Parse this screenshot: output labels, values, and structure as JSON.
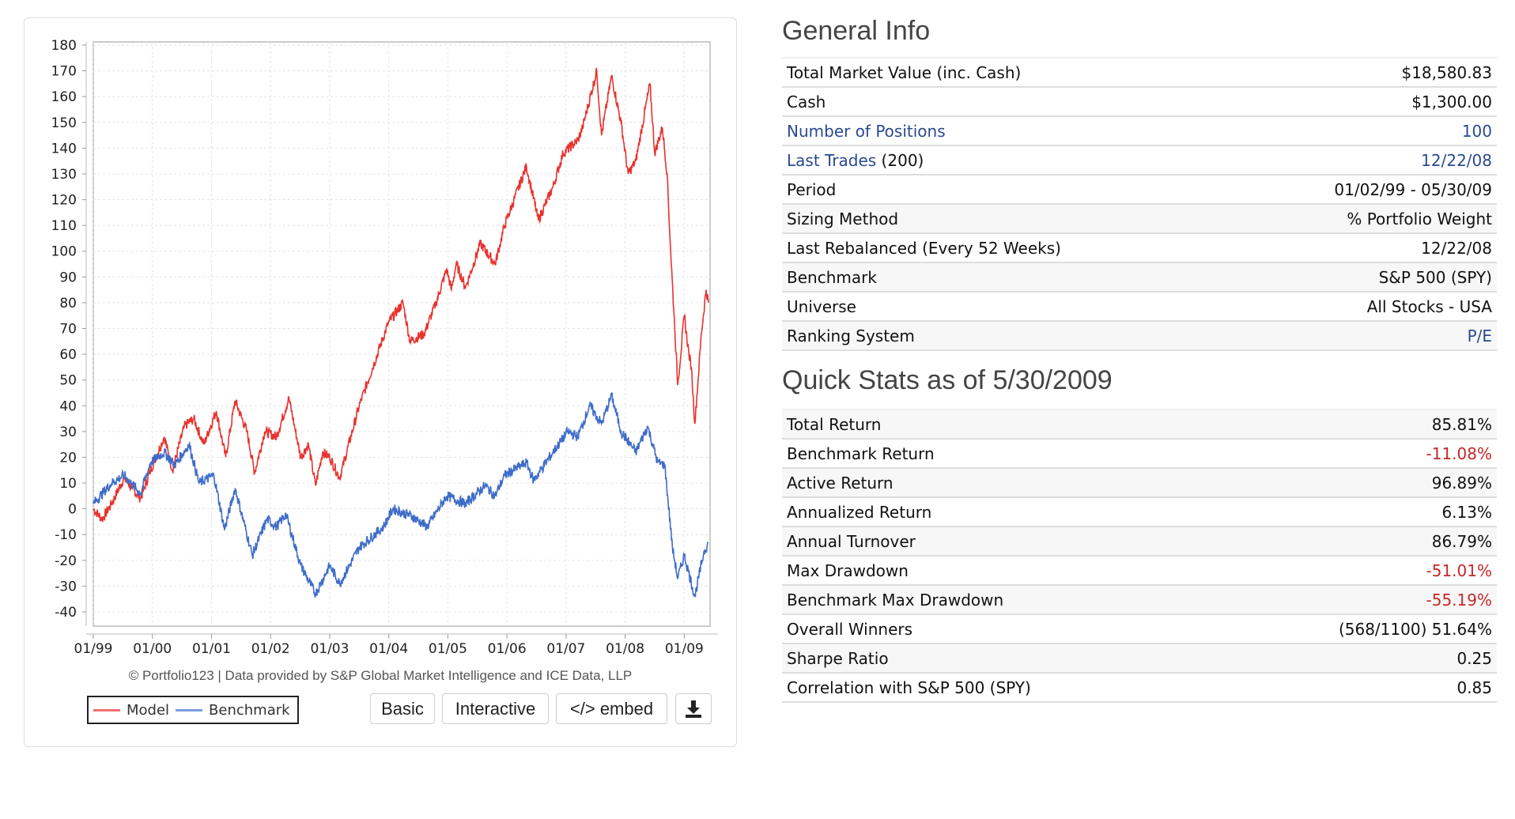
{
  "chart_data": {
    "type": "line",
    "ylim": [
      -43,
      182
    ],
    "yticks": [
      180,
      170,
      160,
      150,
      140,
      130,
      120,
      110,
      100,
      90,
      80,
      70,
      60,
      50,
      40,
      30,
      20,
      10,
      0,
      -10,
      -20,
      -30,
      -40
    ],
    "xlim": [
      1999.0,
      2009.41
    ],
    "xticks": [
      {
        "t": 1999,
        "label": "01/99"
      },
      {
        "t": 2000,
        "label": "01/00"
      },
      {
        "t": 2001,
        "label": "01/01"
      },
      {
        "t": 2002,
        "label": "01/02"
      },
      {
        "t": 2003,
        "label": "01/03"
      },
      {
        "t": 2004,
        "label": "01/04"
      },
      {
        "t": 2005,
        "label": "01/05"
      },
      {
        "t": 2006,
        "label": "01/06"
      },
      {
        "t": 2007,
        "label": "01/07"
      },
      {
        "t": 2008,
        "label": "01/08"
      },
      {
        "t": 2009,
        "label": "01/09"
      }
    ],
    "grid": true,
    "series": [
      {
        "name": "Model",
        "color": "#e8322e",
        "points": [
          [
            1999.0,
            0
          ],
          [
            1999.15,
            -4
          ],
          [
            1999.31,
            2
          ],
          [
            1999.52,
            12
          ],
          [
            1999.8,
            4
          ],
          [
            1999.97,
            15
          ],
          [
            2000.2,
            28
          ],
          [
            2000.34,
            15
          ],
          [
            2000.54,
            32
          ],
          [
            2000.7,
            35
          ],
          [
            2000.87,
            25
          ],
          [
            2001.08,
            38
          ],
          [
            2001.24,
            20
          ],
          [
            2001.4,
            42
          ],
          [
            2001.6,
            30
          ],
          [
            2001.73,
            14
          ],
          [
            2001.9,
            30
          ],
          [
            2002.1,
            28
          ],
          [
            2002.31,
            43
          ],
          [
            2002.51,
            20
          ],
          [
            2002.64,
            25
          ],
          [
            2002.76,
            9
          ],
          [
            2002.88,
            22
          ],
          [
            2003.0,
            20
          ],
          [
            2003.17,
            12
          ],
          [
            2003.5,
            40
          ],
          [
            2003.99,
            72
          ],
          [
            2004.24,
            80
          ],
          [
            2004.36,
            65
          ],
          [
            2004.6,
            68
          ],
          [
            2004.8,
            80
          ],
          [
            2004.98,
            93
          ],
          [
            2005.06,
            85
          ],
          [
            2005.14,
            95
          ],
          [
            2005.3,
            86
          ],
          [
            2005.55,
            103
          ],
          [
            2005.8,
            95
          ],
          [
            2005.96,
            110
          ],
          [
            2006.33,
            133
          ],
          [
            2006.53,
            112
          ],
          [
            2006.78,
            125
          ],
          [
            2006.95,
            138
          ],
          [
            2007.2,
            143
          ],
          [
            2007.28,
            148
          ],
          [
            2007.52,
            170
          ],
          [
            2007.6,
            145
          ],
          [
            2007.77,
            168
          ],
          [
            2007.93,
            150
          ],
          [
            2008.05,
            130
          ],
          [
            2008.18,
            135
          ],
          [
            2008.42,
            165
          ],
          [
            2008.5,
            138
          ],
          [
            2008.63,
            148
          ],
          [
            2008.71,
            130
          ],
          [
            2008.77,
            100
          ],
          [
            2008.84,
            70
          ],
          [
            2008.89,
            48
          ],
          [
            2009.0,
            75
          ],
          [
            2009.08,
            60
          ],
          [
            2009.12,
            55
          ],
          [
            2009.18,
            33
          ],
          [
            2009.29,
            68
          ],
          [
            2009.37,
            85
          ],
          [
            2009.41,
            80
          ]
        ]
      },
      {
        "name": "Benchmark",
        "color": "#3e6cc9",
        "points": [
          [
            1999.0,
            2
          ],
          [
            1999.31,
            10
          ],
          [
            1999.52,
            13
          ],
          [
            1999.8,
            6
          ],
          [
            1999.97,
            18
          ],
          [
            2000.2,
            22
          ],
          [
            2000.38,
            17
          ],
          [
            2000.62,
            25
          ],
          [
            2000.79,
            10
          ],
          [
            2001.04,
            13
          ],
          [
            2001.22,
            -8
          ],
          [
            2001.4,
            8
          ],
          [
            2001.69,
            -18
          ],
          [
            2001.94,
            -4
          ],
          [
            2002.1,
            -7
          ],
          [
            2002.26,
            -2
          ],
          [
            2002.51,
            -22
          ],
          [
            2002.76,
            -33
          ],
          [
            2003.0,
            -22
          ],
          [
            2003.17,
            -29
          ],
          [
            2003.5,
            -15
          ],
          [
            2003.91,
            -7
          ],
          [
            2004.07,
            0
          ],
          [
            2004.4,
            -3
          ],
          [
            2004.65,
            -7
          ],
          [
            2004.98,
            5
          ],
          [
            2005.3,
            2
          ],
          [
            2005.63,
            9
          ],
          [
            2005.8,
            5
          ],
          [
            2005.96,
            13
          ],
          [
            2006.33,
            18
          ],
          [
            2006.45,
            11
          ],
          [
            2006.78,
            22
          ],
          [
            2007.03,
            30
          ],
          [
            2007.2,
            28
          ],
          [
            2007.4,
            40
          ],
          [
            2007.6,
            33
          ],
          [
            2007.77,
            44
          ],
          [
            2007.93,
            30
          ],
          [
            2008.18,
            22
          ],
          [
            2008.38,
            32
          ],
          [
            2008.55,
            18
          ],
          [
            2008.67,
            17
          ],
          [
            2008.8,
            -15
          ],
          [
            2008.89,
            -27
          ],
          [
            2009.0,
            -18
          ],
          [
            2009.18,
            -34
          ],
          [
            2009.33,
            -17
          ],
          [
            2009.41,
            -13
          ]
        ]
      }
    ],
    "legend": "bottom-left"
  },
  "chart": {
    "credit": "© Portfolio123 | Data provided by S&P Global Market Intelligence and ICE Data, LLP",
    "legend": {
      "model": "Model",
      "benchmark": "Benchmark"
    },
    "buttons": {
      "basic": "Basic",
      "interactive": "Interactive",
      "embed": "</> embed",
      "download_icon": "download-icon"
    }
  },
  "general_info": {
    "title": "General Info",
    "rows": [
      {
        "label": "Total Market Value (inc. Cash)",
        "value": "$18,580.83"
      },
      {
        "label": "Cash",
        "value": "$1,300.00"
      },
      {
        "label": "Number of Positions",
        "value": "100"
      },
      {
        "label": "Last Trades",
        "label_suffix": " (200)",
        "value": "12/22/08"
      },
      {
        "label": "Period",
        "value": "01/02/99 - 05/30/09"
      },
      {
        "label": "Sizing Method",
        "value": "% Portfolio Weight"
      },
      {
        "label": "Last Rebalanced (Every 52 Weeks)",
        "value": "12/22/08"
      },
      {
        "label": "Benchmark",
        "value": "S&P 500 (SPY)"
      },
      {
        "label": "Universe",
        "value": "All Stocks - USA"
      },
      {
        "label": "Ranking System",
        "value": "P/E"
      }
    ]
  },
  "quick_stats": {
    "title": "Quick Stats as of 5/30/2009",
    "rows": [
      {
        "label": "Total Return",
        "value": "85.81%"
      },
      {
        "label": "Benchmark Return",
        "value": "-11.08%"
      },
      {
        "label": "Active Return",
        "value": "96.89%"
      },
      {
        "label": "Annualized Return",
        "value": "6.13%"
      },
      {
        "label": "Annual Turnover",
        "value": "86.79%"
      },
      {
        "label": "Max Drawdown",
        "value": "-51.01%"
      },
      {
        "label": "Benchmark Max Drawdown",
        "value": "-55.19%"
      },
      {
        "label": "Overall Winners",
        "value": "(568/1100) 51.64%"
      },
      {
        "label": "Sharpe Ratio",
        "value": "0.25"
      },
      {
        "label": "Correlation with S&P 500 (SPY)",
        "value": "0.85"
      }
    ]
  },
  "colors": {
    "link": "#2a4a8f",
    "negative": "#c62828"
  }
}
